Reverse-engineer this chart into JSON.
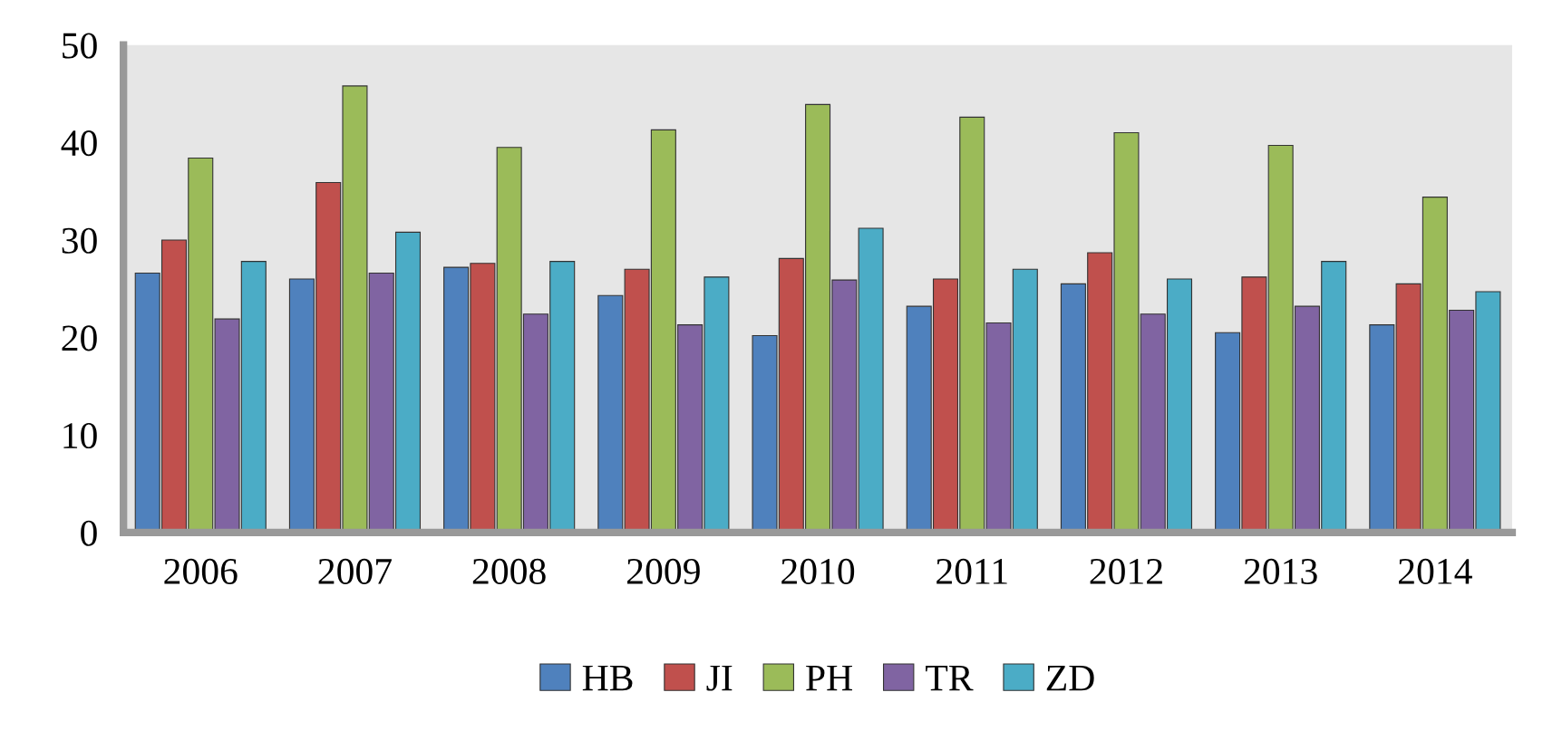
{
  "chart_data": {
    "type": "bar",
    "categories": [
      "2006",
      "2007",
      "2008",
      "2009",
      "2010",
      "2011",
      "2012",
      "2013",
      "2014"
    ],
    "series": [
      {
        "name": "HB",
        "color": "#4f81bd",
        "values": [
          26.6,
          26.0,
          27.2,
          24.3,
          20.2,
          23.2,
          25.5,
          20.5,
          21.3
        ]
      },
      {
        "name": "JI",
        "color": "#c0504d",
        "values": [
          30.0,
          35.9,
          27.6,
          27.0,
          28.1,
          26.0,
          28.7,
          26.2,
          25.5
        ]
      },
      {
        "name": "PH",
        "color": "#9bbb59",
        "values": [
          38.4,
          45.8,
          39.5,
          41.3,
          43.9,
          42.6,
          41.0,
          39.7,
          34.4
        ]
      },
      {
        "name": "TR",
        "color": "#8064a2",
        "values": [
          21.9,
          26.6,
          22.4,
          21.3,
          25.9,
          21.5,
          22.4,
          23.2,
          22.8
        ]
      },
      {
        "name": "ZD",
        "color": "#4bacc6",
        "values": [
          27.8,
          30.8,
          27.8,
          26.2,
          31.2,
          27.0,
          26.0,
          27.8,
          24.7
        ]
      }
    ],
    "ylim": [
      0,
      50
    ],
    "yticks": [
      0,
      10,
      20,
      30,
      40,
      50
    ],
    "grid": false,
    "legend": "bottom"
  }
}
